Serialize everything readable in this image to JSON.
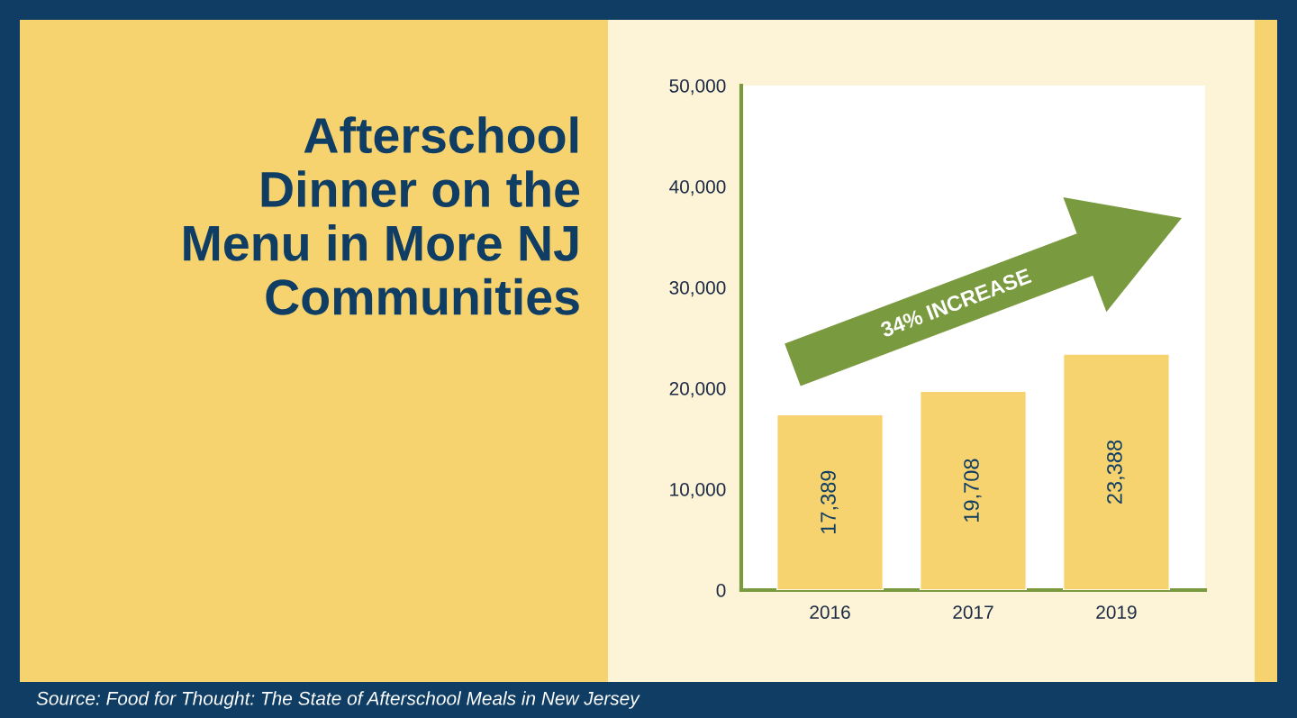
{
  "chart_data": {
    "type": "bar",
    "title": "Afterschool\nDinner on the\nMenu in More NJ\nCommunities",
    "categories": [
      "2016",
      "2017",
      "2019"
    ],
    "values": [
      17389,
      19708,
      23388
    ],
    "value_labels": [
      "17,389",
      "19,708",
      "23,388"
    ],
    "color": "#f7d36f",
    "ylim": [
      0,
      50000
    ],
    "yticks": [
      0,
      {
        "value": 10000,
        "label": "10,000"
      },
      {
        "value": 20000,
        "label": "20,000"
      },
      {
        "value": 30000,
        "label": "30,000"
      },
      {
        "value": 40000,
        "label": "40,000"
      },
      {
        "value": 50000,
        "label": "50,000"
      }
    ],
    "grid": false,
    "legend": false,
    "annotations": [
      "34% INCREASE",
      "Source: Food for Thought: The State of Afterschool Meals in New Jersey"
    ]
  }
}
